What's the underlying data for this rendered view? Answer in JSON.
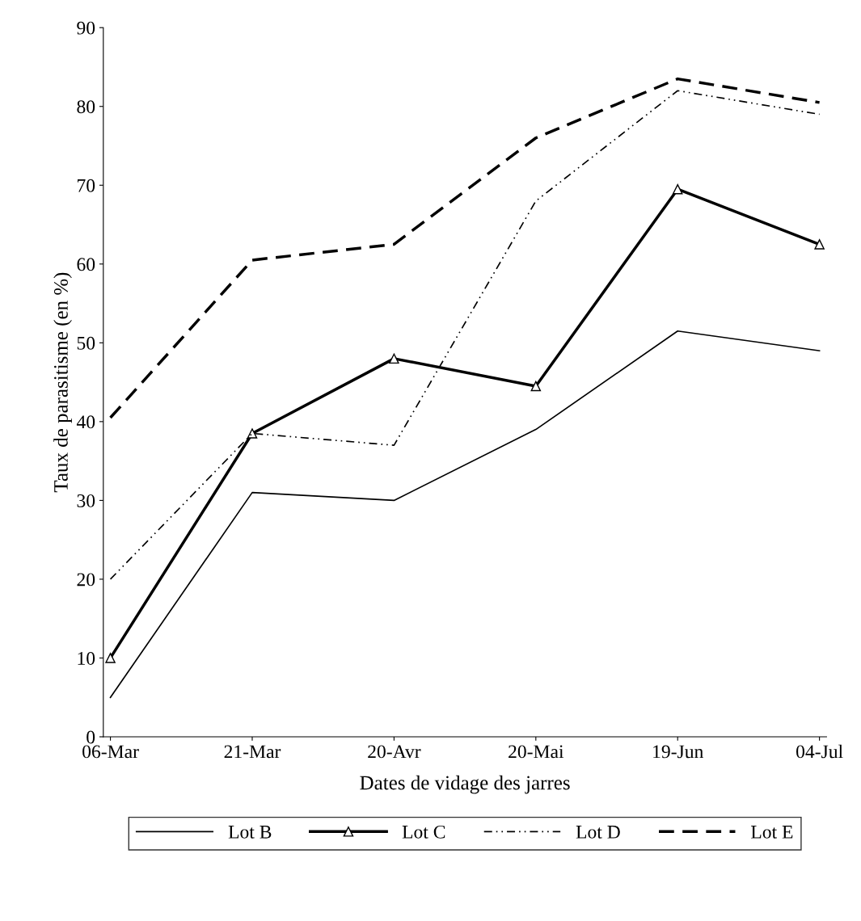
{
  "chart_data": {
    "type": "line",
    "xlabel": "Dates de vidage des jarres",
    "ylabel": "Taux de parasitisme (en %)",
    "categories": [
      "06-Mar",
      "21-Mar",
      "20-Avr",
      "20-Mai",
      "19-Jun",
      "04-Jul"
    ],
    "ylim": [
      0,
      90
    ],
    "yticks": [
      0,
      10,
      20,
      30,
      40,
      50,
      60,
      70,
      80,
      90
    ],
    "legend": "bottom",
    "series": [
      {
        "name": "Lot B",
        "color": "#000000",
        "line_style": "solid",
        "values": [
          5,
          31,
          30,
          39,
          51.5,
          49
        ]
      },
      {
        "name": "Lot C",
        "color": "#000000",
        "line_style": "solid",
        "marker": "triangle",
        "values": [
          10,
          38.5,
          48,
          44.5,
          69.5,
          62.5
        ]
      },
      {
        "name": "Lot D",
        "color": "#000000",
        "line_style": "dashdot",
        "values": [
          20,
          38.5,
          37,
          68,
          82,
          79
        ]
      },
      {
        "name": "Lot E",
        "color": "#000000",
        "line_style": "dashed",
        "values": [
          40.5,
          60.5,
          62.5,
          76,
          83.5,
          80.5
        ]
      }
    ]
  }
}
